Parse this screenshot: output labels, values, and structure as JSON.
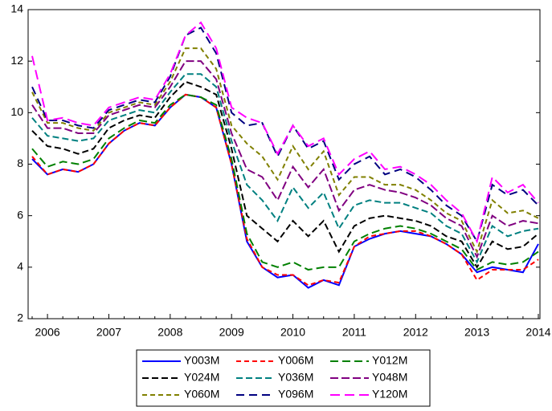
{
  "chart_data": {
    "type": "line",
    "categories": [
      null,
      "2006",
      null,
      null,
      null,
      "2007",
      null,
      null,
      null,
      "2008",
      null,
      null,
      null,
      "2009",
      null,
      null,
      null,
      "2010",
      null,
      null,
      null,
      "2011",
      null,
      null,
      null,
      "2012",
      null,
      null,
      null,
      "2013",
      null,
      null,
      null,
      "2014"
    ],
    "ylim": [
      2,
      14
    ],
    "yticks": [
      2,
      4,
      6,
      8,
      10,
      12,
      14
    ],
    "grid": false,
    "legend": "bottom",
    "series": [
      {
        "name": "Y003M",
        "color": "#0000ff",
        "values": [
          8.2,
          7.6,
          7.8,
          7.7,
          8.0,
          8.8,
          9.3,
          9.6,
          9.5,
          10.2,
          10.7,
          10.6,
          10.2,
          8.0,
          5.0,
          4.0,
          3.6,
          3.7,
          3.2,
          3.5,
          3.3,
          4.8,
          5.1,
          5.3,
          5.4,
          5.3,
          5.2,
          4.9,
          4.5,
          3.8,
          4.0,
          3.9,
          3.8,
          4.9
        ]
      },
      {
        "name": "Y006M",
        "color": "#ff0000",
        "values": [
          8.3,
          7.6,
          7.8,
          7.7,
          8.0,
          8.8,
          9.3,
          9.6,
          9.5,
          10.2,
          10.7,
          10.6,
          10.2,
          8.0,
          5.1,
          4.0,
          3.7,
          3.7,
          3.3,
          3.5,
          3.4,
          4.8,
          5.2,
          5.3,
          5.4,
          5.4,
          5.2,
          4.9,
          4.5,
          3.5,
          3.9,
          3.9,
          3.9,
          4.3
        ]
      },
      {
        "name": "Y012M",
        "color": "#008000",
        "values": [
          8.6,
          7.9,
          8.1,
          8.0,
          8.2,
          9.0,
          9.4,
          9.7,
          9.6,
          10.3,
          10.7,
          10.6,
          10.3,
          8.2,
          5.3,
          4.2,
          4.0,
          4.2,
          3.9,
          4.0,
          4.0,
          5.0,
          5.3,
          5.5,
          5.6,
          5.5,
          5.3,
          5.0,
          4.7,
          3.9,
          4.2,
          4.1,
          4.2,
          4.6
        ]
      },
      {
        "name": "Y024M",
        "color": "#000000",
        "values": [
          9.3,
          8.7,
          8.6,
          8.4,
          8.6,
          9.4,
          9.7,
          9.9,
          9.8,
          10.6,
          11.2,
          11.0,
          10.7,
          8.6,
          6.0,
          5.5,
          5.0,
          5.8,
          5.2,
          5.8,
          4.6,
          5.6,
          5.9,
          6.0,
          5.9,
          5.8,
          5.6,
          5.2,
          5.0,
          4.0,
          5.0,
          4.7,
          4.8,
          5.3
        ]
      },
      {
        "name": "Y036M",
        "color": "#008080",
        "values": [
          9.8,
          9.1,
          9.0,
          8.9,
          9.0,
          9.7,
          9.9,
          10.1,
          10.0,
          10.8,
          11.5,
          11.5,
          11.0,
          8.9,
          7.2,
          6.6,
          5.8,
          7.1,
          6.3,
          6.9,
          5.5,
          6.4,
          6.6,
          6.5,
          6.5,
          6.3,
          6.1,
          5.6,
          5.3,
          4.2,
          5.6,
          5.2,
          5.4,
          5.5
        ]
      },
      {
        "name": "Y048M",
        "color": "#800080",
        "values": [
          10.3,
          9.4,
          9.4,
          9.2,
          9.2,
          9.9,
          10.1,
          10.3,
          10.2,
          11.0,
          12.0,
          12.0,
          11.3,
          9.2,
          7.8,
          7.5,
          6.6,
          7.9,
          7.1,
          7.8,
          6.2,
          7.0,
          7.2,
          7.0,
          6.9,
          6.7,
          6.4,
          5.9,
          5.6,
          4.4,
          6.0,
          5.6,
          5.8,
          5.7
        ]
      },
      {
        "name": "Y060M",
        "color": "#808000",
        "values": [
          10.8,
          9.6,
          9.6,
          9.4,
          9.3,
          10.0,
          10.2,
          10.4,
          10.3,
          11.2,
          12.5,
          12.5,
          11.7,
          9.5,
          8.8,
          8.3,
          7.4,
          8.7,
          7.8,
          8.5,
          6.8,
          7.5,
          7.5,
          7.2,
          7.2,
          7.0,
          6.6,
          6.1,
          5.8,
          4.6,
          6.6,
          6.1,
          6.2,
          5.9
        ]
      },
      {
        "name": "Y096M",
        "color": "#000080",
        "values": [
          11.0,
          9.7,
          9.7,
          9.5,
          9.4,
          10.1,
          10.3,
          10.5,
          10.4,
          11.4,
          13.0,
          13.3,
          12.3,
          10.0,
          9.5,
          9.6,
          8.3,
          9.5,
          8.6,
          8.9,
          7.4,
          8.0,
          8.3,
          7.6,
          7.8,
          7.5,
          7.0,
          6.4,
          6.0,
          5.0,
          7.2,
          6.8,
          7.0,
          6.4
        ]
      },
      {
        "name": "Y120M",
        "color": "#ff00ff",
        "values": [
          12.2,
          9.7,
          9.8,
          9.6,
          9.5,
          10.2,
          10.4,
          10.6,
          10.5,
          11.5,
          13.0,
          13.5,
          12.5,
          10.2,
          9.8,
          9.6,
          8.4,
          9.5,
          8.7,
          9.0,
          7.6,
          8.2,
          8.5,
          7.8,
          7.9,
          7.6,
          7.2,
          6.6,
          6.1,
          5.0,
          7.5,
          6.9,
          7.2,
          6.5
        ]
      }
    ]
  }
}
